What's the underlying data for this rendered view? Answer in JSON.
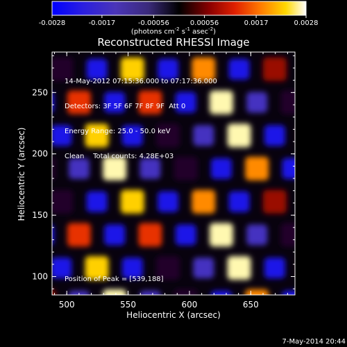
{
  "colorbar": {
    "ticks": [
      "-0.0028",
      "-0.0017",
      "-0.00056",
      "0.00056",
      "0.0017",
      "0.0028"
    ],
    "tick_values": [
      -0.0028,
      -0.0017,
      -0.00056,
      0.00056,
      0.0017,
      0.0028
    ],
    "range": [
      -0.0028,
      0.0028
    ],
    "unit_label_pre": "(photons cm",
    "unit_label_exp1": "-2",
    "unit_label_mid": " s",
    "unit_label_exp2": "-1",
    "unit_label_mid2": " asec",
    "unit_label_exp3": "-2",
    "unit_label_post": ")",
    "colors": [
      "#0000ff",
      "#3a2cc8",
      "#5a3aa0",
      "#000000",
      "#7a0000",
      "#d81800",
      "#ff7000",
      "#ffd000",
      "#ffffff"
    ]
  },
  "title": "Reconstructed RHESSI Image",
  "info": {
    "line1": "14-May-2012 07:15:36.000 to 07:17:36.000",
    "line2": "Detectors: 3F 5F 6F 7F 8F 9F  Att 0",
    "line3": "Energy Range: 25.0 - 50.0 keV",
    "line4": "Clean    Total counts: 4.28E+03"
  },
  "peak": "Position of Peak = [539,188]",
  "timestamp": "7-May-2014 20:44",
  "chart_data": {
    "type": "heatmap",
    "title": "Reconstructed RHESSI Image",
    "xlabel": "Heliocentric X (arcsec)",
    "ylabel": "Heliocentric Y (arcsec)",
    "xlim": [
      488,
      686
    ],
    "ylim": [
      85,
      283
    ],
    "xticks": [
      500,
      550,
      600,
      650
    ],
    "yticks": [
      100,
      150,
      200,
      250
    ],
    "peak_position": [
      539,
      188
    ],
    "value_range": [
      -0.0028,
      0.0028
    ],
    "pattern": {
      "x_spacing": 29,
      "y_spacing": 27,
      "description": "periodic lattice of bright and dark lobes along diagonal ridges"
    }
  }
}
